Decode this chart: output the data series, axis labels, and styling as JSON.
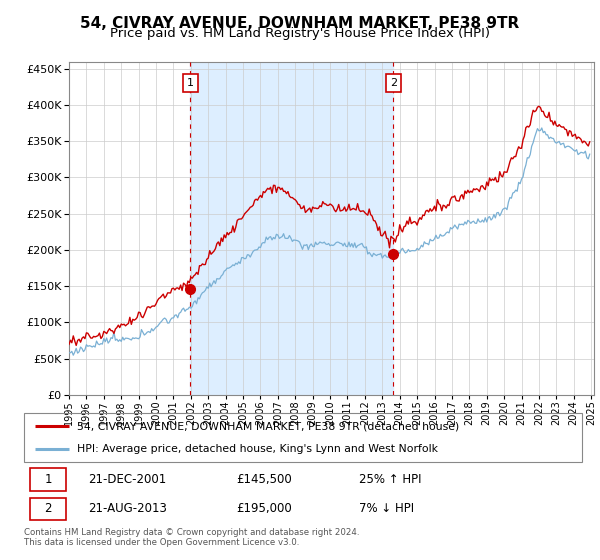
{
  "title": "54, CIVRAY AVENUE, DOWNHAM MARKET, PE38 9TR",
  "subtitle": "Price paid vs. HM Land Registry's House Price Index (HPI)",
  "title_fontsize": 11,
  "subtitle_fontsize": 9.5,
  "legend_line1": "54, CIVRAY AVENUE, DOWNHAM MARKET, PE38 9TR (detached house)",
  "legend_line2": "HPI: Average price, detached house, King's Lynn and West Norfolk",
  "annotation1_date": "21-DEC-2001",
  "annotation1_price": "£145,500",
  "annotation1_hpi": "25% ↑ HPI",
  "annotation2_date": "21-AUG-2013",
  "annotation2_price": "£195,000",
  "annotation2_hpi": "7% ↓ HPI",
  "footer1": "Contains HM Land Registry data © Crown copyright and database right 2024.",
  "footer2": "This data is licensed under the Open Government Licence v3.0.",
  "sale_color": "#cc0000",
  "hpi_color": "#7ab0d4",
  "vline_color": "#cc0000",
  "shade_color": "#ddeeff",
  "ylim_min": 0,
  "ylim_max": 460000,
  "background_color": "#ffffff",
  "grid_color": "#cccccc"
}
